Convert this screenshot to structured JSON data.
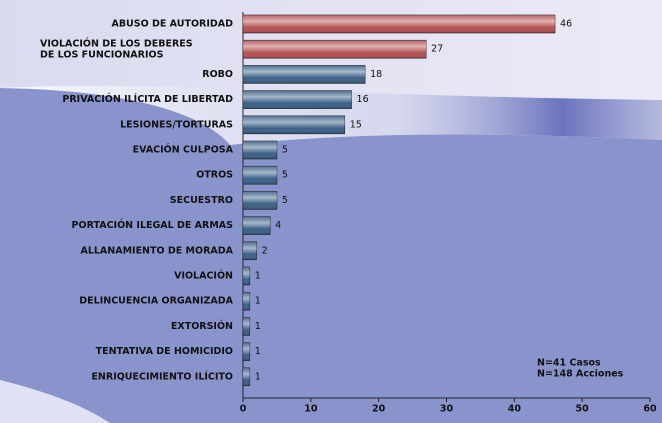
{
  "chart_data": {
    "type": "barh",
    "categories": [
      "ABUSO DE AUTORIDAD",
      "VIOLACIÓN DE LOS DEBERES\nDE LOS FUNCIONARIOS",
      "ROBO",
      "PRIVACIÓN ILÍCITA DE LIBERTAD",
      "LESIONES/TORTURAS",
      "EVACIÓN CULPOSA",
      "OTROS",
      "SECUESTRO",
      "PORTACIÓN ILEGAL DE ARMAS",
      "ALLANAMIENTO DE MORADA",
      "VIOLACIÓN",
      "DELINCUENCIA ORGANIZADA",
      "EXTORSIÓN",
      "TENTATIVA DE HOMICIDIO",
      "ENRIQUECIMIENTO ILÍCITO"
    ],
    "values": [
      46,
      27,
      18,
      16,
      15,
      5,
      5,
      5,
      4,
      2,
      1,
      1,
      1,
      1,
      1
    ],
    "colors": [
      "#b65252",
      "#b65252",
      "#3b6087",
      "#3b6087",
      "#3b6087",
      "#3b6087",
      "#3b6087",
      "#3b6087",
      "#3b6087",
      "#3b6087",
      "#3b6087",
      "#3b6087",
      "#3b6087",
      "#3b6087",
      "#3b6087"
    ],
    "xlim": [
      0,
      60
    ],
    "xticks": [
      0,
      10,
      20,
      30,
      40,
      50,
      60
    ],
    "annotations": [
      "N=41 Casos",
      "N=148 Acciones"
    ]
  }
}
